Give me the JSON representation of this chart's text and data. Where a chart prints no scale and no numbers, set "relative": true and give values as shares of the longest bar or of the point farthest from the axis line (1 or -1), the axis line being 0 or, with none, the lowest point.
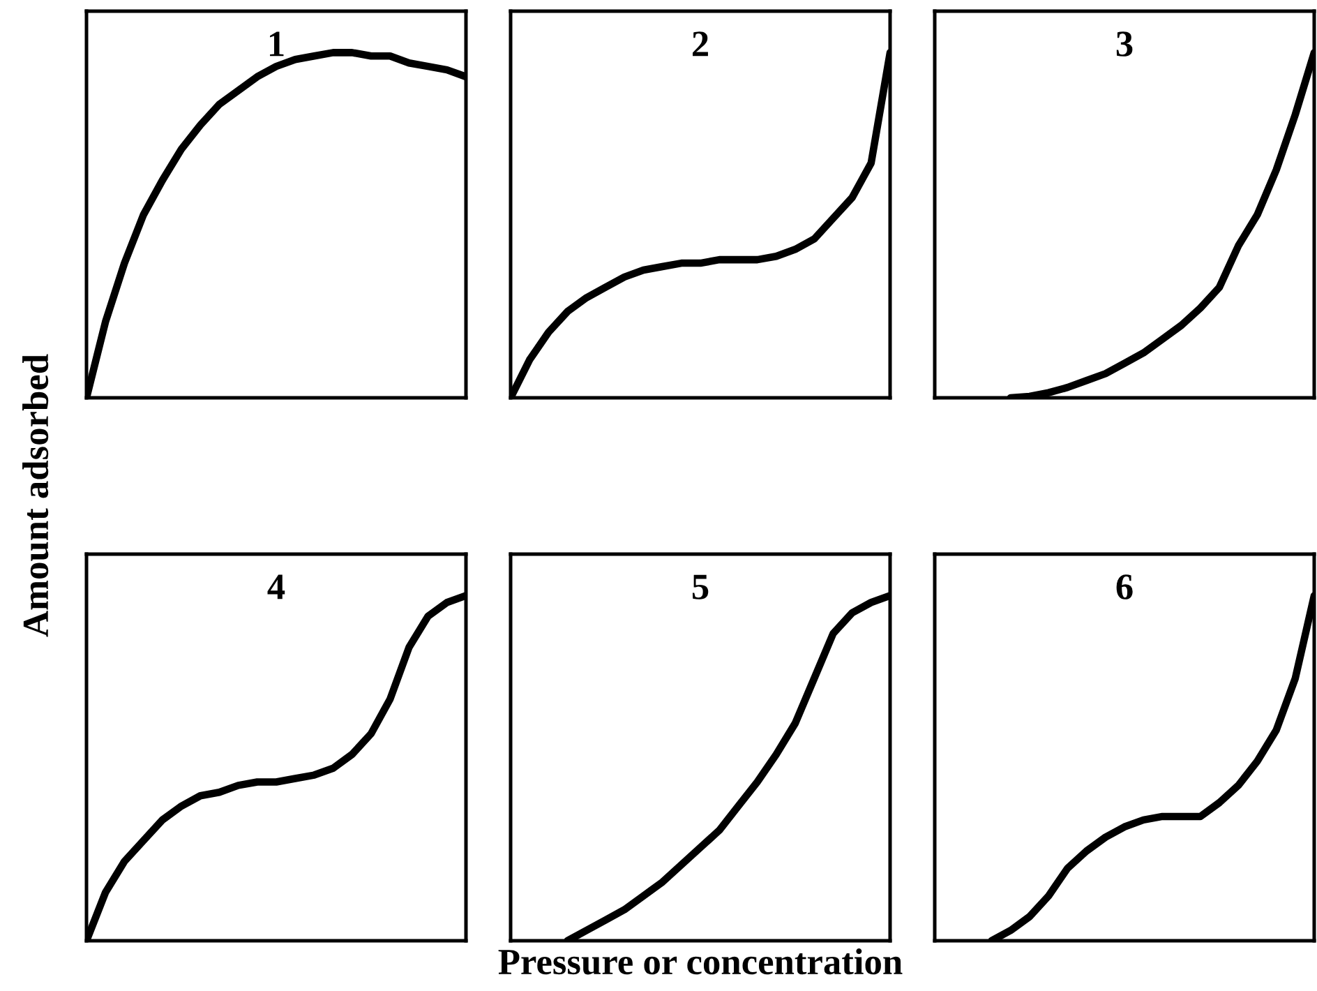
{
  "chart_data": [
    {
      "type": "line",
      "title": "1",
      "ylabel": "Amount adsorbed",
      "relative": true,
      "tick_labels": false,
      "categories": [
        null,
        null,
        null,
        null,
        null,
        null,
        null,
        null,
        null,
        null,
        null,
        null,
        null,
        null,
        null,
        null,
        null,
        null,
        null,
        null,
        null
      ],
      "series": [
        {
          "color": "#000000",
          "values": [
            0,
            0.22,
            0.39,
            0.53,
            0.63,
            0.72,
            0.79,
            0.85,
            0.89,
            0.93,
            0.96,
            0.98,
            0.99,
            1,
            1,
            0.99,
            0.99,
            0.97,
            0.96,
            0.95,
            0.93
          ]
        }
      ]
    },
    {
      "type": "line",
      "title": "2",
      "relative": true,
      "tick_labels": false,
      "categories": [
        null,
        null,
        null,
        null,
        null,
        null,
        null,
        null,
        null,
        null,
        null,
        null,
        null,
        null,
        null,
        null,
        null,
        null,
        null,
        null,
        null
      ],
      "series": [
        {
          "color": "#000000",
          "values": [
            0,
            0.11,
            0.19,
            0.25,
            0.29,
            0.32,
            0.35,
            0.37,
            0.38,
            0.39,
            0.39,
            0.4,
            0.4,
            0.4,
            0.41,
            0.43,
            0.46,
            0.52,
            0.58,
            0.68,
            1
          ]
        }
      ]
    },
    {
      "type": "line",
      "title": "3",
      "relative": true,
      "tick_labels": false,
      "categories": [
        null,
        null,
        null,
        null,
        null,
        null,
        null,
        null,
        null,
        null,
        null,
        null,
        null,
        null,
        null,
        null,
        null,
        null,
        null,
        null,
        null
      ],
      "series": [
        {
          "color": "#000000",
          "values": [
            null,
            null,
            null,
            null,
            0,
            0.004,
            0.015,
            0.03,
            0.05,
            0.07,
            0.1,
            0.13,
            0.17,
            0.21,
            0.26,
            0.32,
            0.44,
            0.53,
            0.66,
            0.82,
            1
          ]
        }
      ]
    },
    {
      "type": "line",
      "title": "4",
      "relative": true,
      "tick_labels": false,
      "categories": [
        null,
        null,
        null,
        null,
        null,
        null,
        null,
        null,
        null,
        null,
        null,
        null,
        null,
        null,
        null,
        null,
        null,
        null,
        null,
        null,
        null
      ],
      "series": [
        {
          "color": "#000000",
          "values": [
            0,
            0.14,
            0.23,
            0.29,
            0.35,
            0.39,
            0.42,
            0.43,
            0.45,
            0.46,
            0.46,
            0.47,
            0.48,
            0.5,
            0.54,
            0.6,
            0.7,
            0.85,
            0.94,
            0.98,
            1
          ]
        }
      ]
    },
    {
      "type": "line",
      "title": "5",
      "xlabel": "Pressure or concentration",
      "relative": true,
      "tick_labels": false,
      "categories": [
        null,
        null,
        null,
        null,
        null,
        null,
        null,
        null,
        null,
        null,
        null,
        null,
        null,
        null,
        null,
        null,
        null,
        null,
        null,
        null,
        null
      ],
      "series": [
        {
          "color": "#000000",
          "values": [
            null,
            null,
            null,
            0,
            0.03,
            0.06,
            0.09,
            0.13,
            0.17,
            0.22,
            0.27,
            0.32,
            0.39,
            0.46,
            0.54,
            0.63,
            0.76,
            0.89,
            0.95,
            0.98,
            1
          ]
        }
      ]
    },
    {
      "type": "line",
      "title": "6",
      "relative": true,
      "tick_labels": false,
      "categories": [
        null,
        null,
        null,
        null,
        null,
        null,
        null,
        null,
        null,
        null,
        null,
        null,
        null,
        null,
        null,
        null,
        null,
        null,
        null,
        null,
        null
      ],
      "series": [
        {
          "color": "#000000",
          "values": [
            null,
            null,
            null,
            0,
            0.03,
            0.07,
            0.13,
            0.21,
            0.26,
            0.3,
            0.33,
            0.35,
            0.36,
            0.36,
            0.36,
            0.4,
            0.45,
            0.52,
            0.61,
            0.76,
            1
          ]
        }
      ]
    }
  ]
}
